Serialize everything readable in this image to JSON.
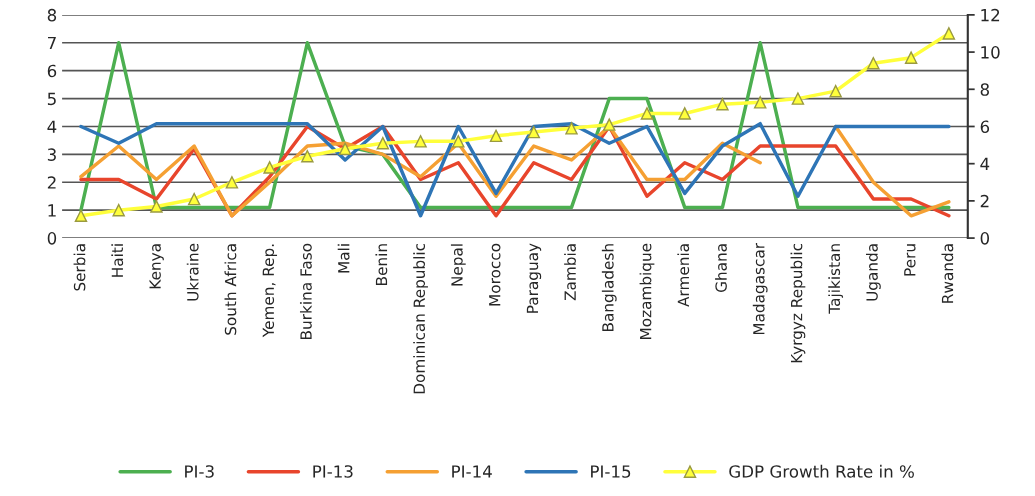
{
  "chart_data": {
    "type": "line",
    "categories": [
      "Serbia",
      "Haiti",
      "Kenya",
      "Ukraine",
      "South Africa",
      "Yemen, Rep.",
      "Burkina Faso",
      "Mali",
      "Benin",
      "Dominican Republic",
      "Nepal",
      "Morocco",
      "Paraguay",
      "Zambia",
      "Bangladesh",
      "Mozambique",
      "Armenia",
      "Ghana",
      "Madagascar",
      "Kyrgyz Republic",
      "Tajikistan",
      "Uganda",
      "Peru",
      "Rwanda"
    ],
    "series": [
      {
        "name": "PI-3",
        "color": "#4caf50",
        "values": [
          1,
          7,
          1.1,
          1.1,
          1.1,
          1.1,
          7,
          3.3,
          3,
          1.1,
          1.1,
          1.1,
          1.1,
          1.1,
          5,
          5,
          1.1,
          1.1,
          7,
          1.1,
          1.1,
          1.1,
          1.1,
          1.1
        ]
      },
      {
        "name": "PI-13",
        "color": "#e8452c",
        "values": [
          2.1,
          2.1,
          1.4,
          3.2,
          0.8,
          2.2,
          4,
          3.2,
          4,
          2.1,
          2.7,
          0.8,
          2.7,
          2.1,
          4,
          1.5,
          2.7,
          2.1,
          3.3,
          3.3,
          3.3,
          1.4,
          1.4,
          0.8
        ]
      },
      {
        "name": "PI-14",
        "color": "#f5a033",
        "values": [
          2.2,
          3.3,
          2.1,
          3.3,
          0.8,
          2,
          3.3,
          3.4,
          3,
          2.2,
          3.4,
          1.5,
          3.3,
          2.8,
          4,
          2.1,
          2.1,
          3.4,
          2.7,
          null,
          4,
          2,
          0.8,
          1.3
        ]
      },
      {
        "name": "PI-15",
        "color": "#2e75b6",
        "values": [
          4,
          3.4,
          4.1,
          4.1,
          4.1,
          4.1,
          4.1,
          2.8,
          4,
          0.8,
          4,
          1.6,
          4,
          4.1,
          3.4,
          4,
          1.6,
          3.3,
          4.1,
          1.5,
          4,
          4,
          4,
          4
        ]
      },
      {
        "name": "GDP Growth Rate in %",
        "color": "#ffff3b",
        "marker": "triangle",
        "axis": "y2",
        "values": [
          1.2,
          1.5,
          1.7,
          2.1,
          3,
          3.8,
          4.4,
          4.8,
          5.1,
          5.2,
          5.2,
          5.5,
          5.7,
          5.9,
          6.1,
          6.7,
          6.7,
          7.2,
          7.3,
          7.5,
          7.9,
          9.4,
          9.7,
          11
        ]
      }
    ],
    "ylim": [
      0,
      8
    ],
    "yticks": [
      0,
      1,
      2,
      3,
      4,
      5,
      6,
      7,
      8
    ],
    "y2lim": [
      0,
      12
    ],
    "y2ticks": [
      0,
      2,
      4,
      6,
      8,
      10,
      12
    ],
    "grid": "y",
    "legend": "bottom"
  }
}
